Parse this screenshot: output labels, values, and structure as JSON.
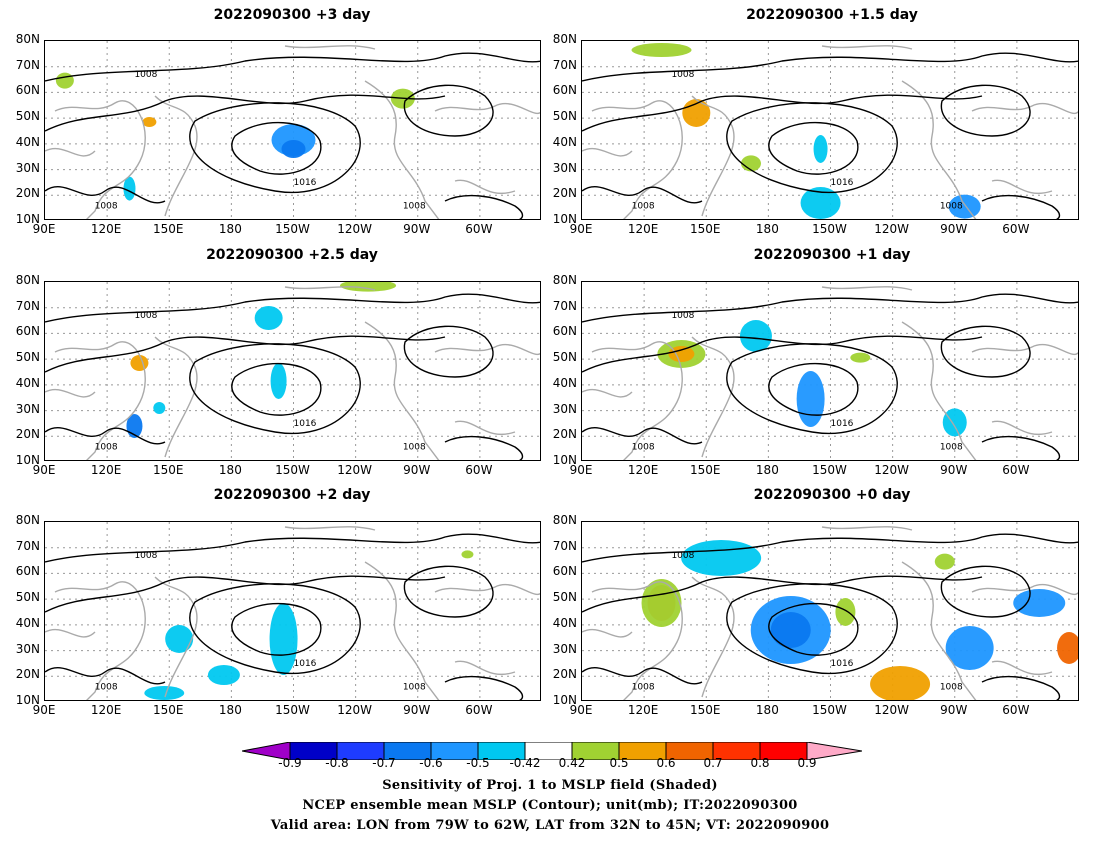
{
  "panels": [
    {
      "title": "2022090300  +3 day"
    },
    {
      "title": "2022090300  +1.5 day"
    },
    {
      "title": "2022090300  +2.5 day"
    },
    {
      "title": "2022090300  +1 day"
    },
    {
      "title": "2022090300  +2 day"
    },
    {
      "title": "2022090300  +0 day"
    }
  ],
  "lat_labels": [
    "80N",
    "70N",
    "60N",
    "50N",
    "40N",
    "30N",
    "20N",
    "10N"
  ],
  "lon_labels": [
    "90E",
    "120E",
    "150E",
    "180",
    "150W",
    "120W",
    "90W",
    "60W"
  ],
  "contour_labels": [
    "1008",
    "1016"
  ],
  "colorbar": {
    "ticks": [
      "-0.9",
      "-0.8",
      "-0.7",
      "-0.6",
      "-0.5",
      "-0.42",
      "0.42",
      "0.5",
      "0.6",
      "0.7",
      "0.8",
      "0.9"
    ],
    "colors": [
      "#a000c8",
      "#0000c8",
      "#1e3cff",
      "#0a78f0",
      "#1e96ff",
      "#00c8f0",
      "#ffffff",
      "#a0d232",
      "#f0a000",
      "#f06400",
      "#ff3200",
      "#ff0000",
      "#ffaac8"
    ]
  },
  "footer": {
    "line1": "Sensitivity of Proj. 1 to MSLP field (Shaded)",
    "line2": "NCEP ensemble mean MSLP (Contour); unit(mb); IT:2022090300",
    "line3": "Valid area: LON from 79W to 62W, LAT from 32N to 45N; VT: 2022090900"
  }
}
